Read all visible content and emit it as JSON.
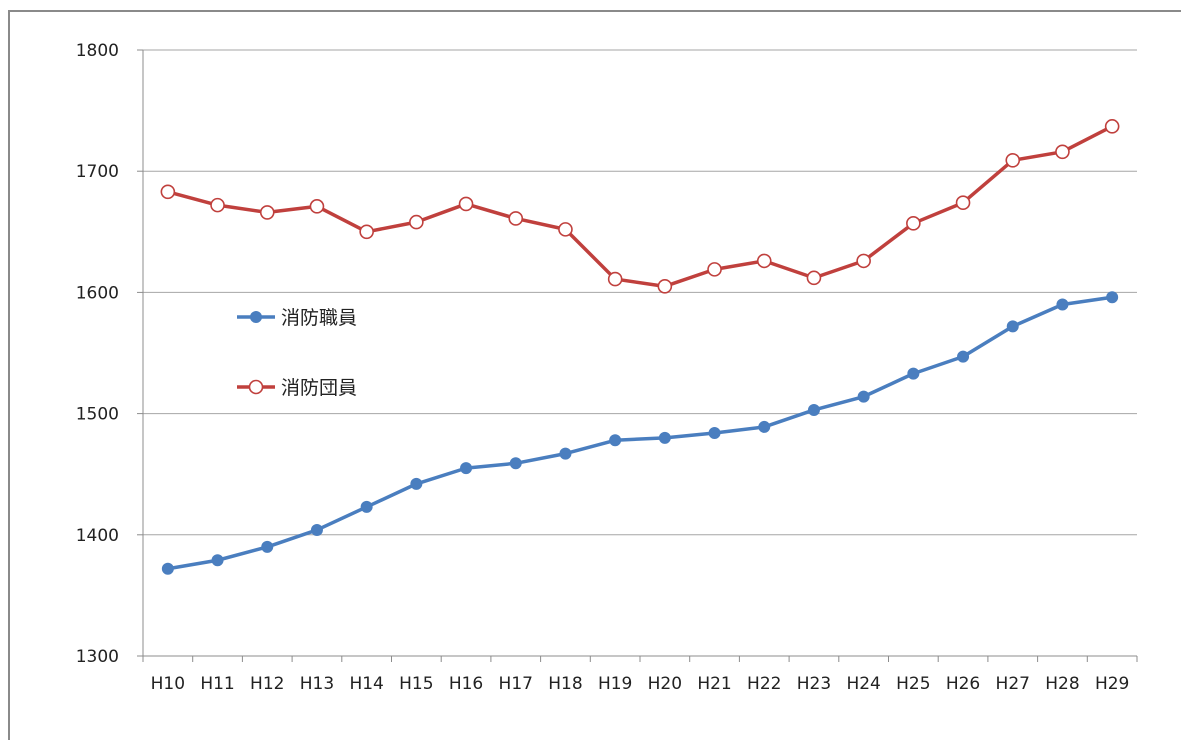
{
  "chart_data": {
    "type": "line",
    "title": "",
    "xlabel": "",
    "ylabel": "",
    "categories": [
      "H10",
      "H11",
      "H12",
      "H13",
      "H14",
      "H15",
      "H16",
      "H17",
      "H18",
      "H19",
      "H20",
      "H21",
      "H22",
      "H23",
      "H24",
      "H25",
      "H26",
      "H27",
      "H28",
      "H29"
    ],
    "ylim": [
      1300,
      1800
    ],
    "yticks": [
      1300,
      1400,
      1500,
      1600,
      1700,
      1800
    ],
    "grid": true,
    "legend_position": "left-inside",
    "series": [
      {
        "name": "消防職員",
        "color": "#4a7ebf",
        "marker": "filled-circle",
        "values": [
          1372,
          1379,
          1390,
          1404,
          1423,
          1442,
          1455,
          1459,
          1467,
          1478,
          1480,
          1484,
          1489,
          1503,
          1514,
          1533,
          1547,
          1572,
          1590,
          1596
        ]
      },
      {
        "name": "消防団員",
        "color": "#c0403d",
        "marker": "hollow-circle",
        "values": [
          1683,
          1672,
          1666,
          1671,
          1650,
          1658,
          1673,
          1661,
          1652,
          1611,
          1605,
          1619,
          1626,
          1612,
          1626,
          1657,
          1674,
          1709,
          1716,
          1737
        ]
      }
    ]
  }
}
